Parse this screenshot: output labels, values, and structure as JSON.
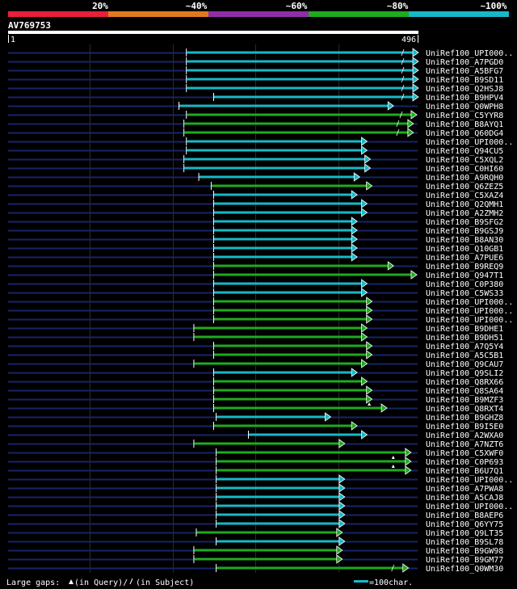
{
  "identity_scale": {
    "ticks": [
      "20%",
      "~40%",
      "~60%",
      "~80%",
      "~100%"
    ],
    "colors": [
      "#e8203a",
      "#e07a1f",
      "#8e2fa8",
      "#1faa1f",
      "#17b8c8"
    ]
  },
  "query": {
    "id": "AV769753",
    "start_label": "1",
    "end_label": "496"
  },
  "footer": {
    "large_gaps_prefix": "Large gaps:",
    "in_query": "(in Query)/",
    "in_subject": "(in Subject)",
    "scale_label": "=100char."
  },
  "chart_data": {
    "type": "alignment-map",
    "query_length": 496,
    "x_range": [
      1,
      496
    ],
    "colors": {
      "green": "#1faa1f",
      "cyan": "#17b8c8",
      "bg_line": "#182468",
      "grid": "#2a2a2a"
    },
    "hits": [
      {
        "name": "UniRef100_UPI000..",
        "start": 216,
        "end": 496,
        "color": "cyan",
        "gap_q": false,
        "gap_s": true
      },
      {
        "name": "UniRef100_A7PGD0",
        "start": 216,
        "end": 496,
        "color": "cyan",
        "gap_q": false,
        "gap_s": true
      },
      {
        "name": "UniRef100_A5BFG7",
        "start": 216,
        "end": 496,
        "color": "cyan",
        "gap_q": false,
        "gap_s": true
      },
      {
        "name": "UniRef100_B9SD11",
        "start": 216,
        "end": 496,
        "color": "cyan",
        "gap_q": false,
        "gap_s": true
      },
      {
        "name": "UniRef100_Q2HSJ8",
        "start": 216,
        "end": 496,
        "color": "cyan",
        "gap_q": false,
        "gap_s": true
      },
      {
        "name": "UniRef100_B9HPV4",
        "start": 249,
        "end": 496,
        "color": "cyan",
        "gap_q": false,
        "gap_s": true
      },
      {
        "name": "UniRef100_Q0WPH8",
        "start": 207,
        "end": 466,
        "color": "cyan",
        "gap_q": false,
        "gap_s": false
      },
      {
        "name": "UniRef100_C5YYR8",
        "start": 216,
        "end": 494,
        "color": "green",
        "gap_q": false,
        "gap_s": true
      },
      {
        "name": "UniRef100_B8AYQ1",
        "start": 213,
        "end": 490,
        "color": "green",
        "gap_q": false,
        "gap_s": true
      },
      {
        "name": "UniRef100_Q60DG4",
        "start": 213,
        "end": 490,
        "color": "green",
        "gap_q": false,
        "gap_s": true
      },
      {
        "name": "UniRef100_UPI000..",
        "start": 216,
        "end": 434,
        "color": "cyan",
        "gap_q": false,
        "gap_s": false
      },
      {
        "name": "UniRef100_Q94CU5",
        "start": 216,
        "end": 434,
        "color": "cyan",
        "gap_q": false,
        "gap_s": false
      },
      {
        "name": "UniRef100_C5XQL2",
        "start": 213,
        "end": 438,
        "color": "cyan",
        "gap_q": false,
        "gap_s": false
      },
      {
        "name": "UniRef100_C0HI60",
        "start": 213,
        "end": 438,
        "color": "cyan",
        "gap_q": false,
        "gap_s": false
      },
      {
        "name": "UniRef100_A9RQH0",
        "start": 231,
        "end": 425,
        "color": "cyan",
        "gap_q": false,
        "gap_s": false
      },
      {
        "name": "UniRef100_Q6ZEZ5",
        "start": 246,
        "end": 440,
        "color": "green",
        "gap_q": false,
        "gap_s": false
      },
      {
        "name": "UniRef100_C5XAZ4",
        "start": 249,
        "end": 422,
        "color": "cyan",
        "gap_q": false,
        "gap_s": false
      },
      {
        "name": "UniRef100_Q2QMH1",
        "start": 249,
        "end": 434,
        "color": "cyan",
        "gap_q": false,
        "gap_s": false
      },
      {
        "name": "UniRef100_A2ZMH2",
        "start": 249,
        "end": 434,
        "color": "cyan",
        "gap_q": false,
        "gap_s": false
      },
      {
        "name": "UniRef100_B9SFG2",
        "start": 249,
        "end": 422,
        "color": "cyan",
        "gap_q": false,
        "gap_s": false
      },
      {
        "name": "UniRef100_B9GSJ9",
        "start": 249,
        "end": 422,
        "color": "cyan",
        "gap_q": false,
        "gap_s": false
      },
      {
        "name": "UniRef100_B8AN30",
        "start": 249,
        "end": 422,
        "color": "cyan",
        "gap_q": false,
        "gap_s": false
      },
      {
        "name": "UniRef100_Q10GB1",
        "start": 249,
        "end": 422,
        "color": "cyan",
        "gap_q": false,
        "gap_s": false
      },
      {
        "name": "UniRef100_A7PUE6",
        "start": 249,
        "end": 422,
        "color": "cyan",
        "gap_q": false,
        "gap_s": false
      },
      {
        "name": "UniRef100_B9REQ9",
        "start": 249,
        "end": 466,
        "color": "green",
        "gap_q": false,
        "gap_s": false
      },
      {
        "name": "UniRef100_Q947T1",
        "start": 249,
        "end": 494,
        "color": "green",
        "gap_q": false,
        "gap_s": false
      },
      {
        "name": "UniRef100_C0P380",
        "start": 249,
        "end": 434,
        "color": "cyan",
        "gap_q": false,
        "gap_s": false
      },
      {
        "name": "UniRef100_C5WS33",
        "start": 249,
        "end": 434,
        "color": "cyan",
        "gap_q": false,
        "gap_s": false
      },
      {
        "name": "UniRef100_UPI000..",
        "start": 249,
        "end": 440,
        "color": "green",
        "gap_q": false,
        "gap_s": false
      },
      {
        "name": "UniRef100_UPI000..",
        "start": 249,
        "end": 440,
        "color": "green",
        "gap_q": false,
        "gap_s": false
      },
      {
        "name": "UniRef100_UPI000..",
        "start": 249,
        "end": 440,
        "color": "green",
        "gap_q": false,
        "gap_s": false
      },
      {
        "name": "UniRef100_B9DHE1",
        "start": 225,
        "end": 434,
        "color": "green",
        "gap_q": false,
        "gap_s": false
      },
      {
        "name": "UniRef100_B9DH51",
        "start": 225,
        "end": 434,
        "color": "green",
        "gap_q": false,
        "gap_s": false
      },
      {
        "name": "UniRef100_A7Q5Y4",
        "start": 249,
        "end": 440,
        "color": "green",
        "gap_q": false,
        "gap_s": false
      },
      {
        "name": "UniRef100_A5C5B1",
        "start": 249,
        "end": 440,
        "color": "green",
        "gap_q": false,
        "gap_s": false
      },
      {
        "name": "UniRef100_Q9CAU7",
        "start": 225,
        "end": 434,
        "color": "green",
        "gap_q": false,
        "gap_s": false
      },
      {
        "name": "UniRef100_Q9SLI2",
        "start": 249,
        "end": 422,
        "color": "cyan",
        "gap_q": false,
        "gap_s": false
      },
      {
        "name": "UniRef100_Q8RX66",
        "start": 249,
        "end": 434,
        "color": "green",
        "gap_q": false,
        "gap_s": false
      },
      {
        "name": "UniRef100_Q8SA64",
        "start": 249,
        "end": 440,
        "color": "green",
        "gap_q": false,
        "gap_s": false
      },
      {
        "name": "UniRef100_B9MZF3",
        "start": 249,
        "end": 440,
        "color": "green",
        "gap_q": false,
        "gap_s": false
      },
      {
        "name": "UniRef100_Q8RXT4",
        "start": 249,
        "end": 458,
        "color": "green",
        "gap_q": true,
        "gap_s": false
      },
      {
        "name": "UniRef100_B9GHZ8",
        "start": 252,
        "end": 390,
        "color": "cyan",
        "gap_q": false,
        "gap_s": false
      },
      {
        "name": "UniRef100_B9I5E0",
        "start": 249,
        "end": 422,
        "color": "green",
        "gap_q": false,
        "gap_s": false
      },
      {
        "name": "UniRef100_A2WXA0",
        "start": 291,
        "end": 434,
        "color": "cyan",
        "gap_q": false,
        "gap_s": false
      },
      {
        "name": "UniRef100_A7NZT6",
        "start": 225,
        "end": 407,
        "color": "green",
        "gap_q": false,
        "gap_s": false
      },
      {
        "name": "UniRef100_C5XWF0",
        "start": 252,
        "end": 487,
        "color": "green",
        "gap_q": false,
        "gap_s": false
      },
      {
        "name": "UniRef100_C0P693",
        "start": 252,
        "end": 487,
        "color": "green",
        "gap_q": true,
        "gap_s": false
      },
      {
        "name": "UniRef100_B6U7Q1",
        "start": 252,
        "end": 487,
        "color": "green",
        "gap_q": true,
        "gap_s": false
      },
      {
        "name": "UniRef100_UPI000..",
        "start": 252,
        "end": 407,
        "color": "cyan",
        "gap_q": false,
        "gap_s": false
      },
      {
        "name": "UniRef100_A7PWA8",
        "start": 252,
        "end": 407,
        "color": "cyan",
        "gap_q": false,
        "gap_s": false
      },
      {
        "name": "UniRef100_A5CAJ8",
        "start": 252,
        "end": 407,
        "color": "cyan",
        "gap_q": false,
        "gap_s": false
      },
      {
        "name": "UniRef100_UPI000..",
        "start": 252,
        "end": 407,
        "color": "cyan",
        "gap_q": false,
        "gap_s": false
      },
      {
        "name": "UniRef100_B8AEP6",
        "start": 252,
        "end": 407,
        "color": "cyan",
        "gap_q": false,
        "gap_s": false
      },
      {
        "name": "UniRef100_Q6YY75",
        "start": 252,
        "end": 407,
        "color": "cyan",
        "gap_q": false,
        "gap_s": false
      },
      {
        "name": "UniRef100_Q9LT35",
        "start": 228,
        "end": 404,
        "color": "green",
        "gap_q": false,
        "gap_s": false
      },
      {
        "name": "UniRef100_B9SL78",
        "start": 252,
        "end": 407,
        "color": "cyan",
        "gap_q": false,
        "gap_s": false
      },
      {
        "name": "UniRef100_B9GW98",
        "start": 225,
        "end": 404,
        "color": "green",
        "gap_q": false,
        "gap_s": false
      },
      {
        "name": "UniRef100_B9GM77",
        "start": 225,
        "end": 404,
        "color": "green",
        "gap_q": false,
        "gap_s": false
      },
      {
        "name": "UniRef100_Q0WM30",
        "start": 252,
        "end": 484,
        "color": "green",
        "gap_q": false,
        "gap_s": true
      }
    ]
  }
}
